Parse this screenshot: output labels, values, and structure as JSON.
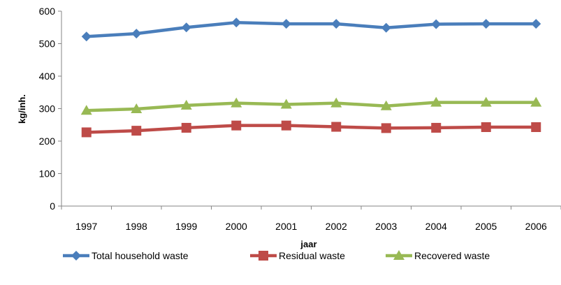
{
  "chart_data": {
    "type": "line",
    "title": "",
    "xlabel": "jaar",
    "ylabel": "kg/inh.",
    "ylim": [
      0,
      600
    ],
    "yticks": [
      0,
      100,
      200,
      300,
      400,
      500,
      600
    ],
    "grid": false,
    "legend_position": "bottom",
    "categories": [
      "1997",
      "1998",
      "1999",
      "2000",
      "2001",
      "2002",
      "2003",
      "2004",
      "2005",
      "2006"
    ],
    "series": [
      {
        "name": "Total household waste",
        "color": "#4a7ebb",
        "marker": "diamond",
        "values": [
          522,
          531,
          550,
          565,
          561,
          561,
          549,
          560,
          561,
          561
        ]
      },
      {
        "name": "Residual waste",
        "color": "#be4b48",
        "marker": "square",
        "values": [
          227,
          232,
          241,
          248,
          248,
          244,
          240,
          241,
          243,
          243
        ]
      },
      {
        "name": "Recovered waste",
        "color": "#98b954",
        "marker": "triangle",
        "values": [
          294,
          299,
          310,
          317,
          313,
          317,
          308,
          319,
          319,
          319
        ]
      }
    ]
  }
}
